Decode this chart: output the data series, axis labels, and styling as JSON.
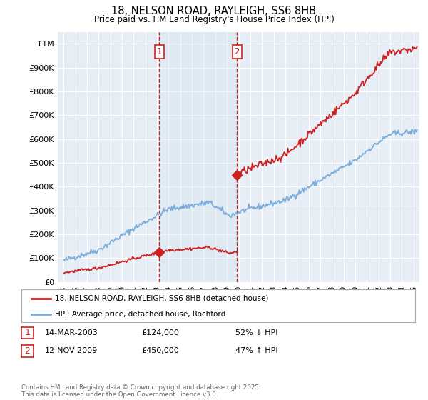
{
  "title": "18, NELSON ROAD, RAYLEIGH, SS6 8HB",
  "subtitle": "Price paid vs. HM Land Registry's House Price Index (HPI)",
  "xlim_start": 1994.5,
  "xlim_end": 2025.5,
  "ylim": [
    0,
    1050000
  ],
  "yticks": [
    0,
    100000,
    200000,
    300000,
    400000,
    500000,
    600000,
    700000,
    800000,
    900000,
    1000000
  ],
  "ytick_labels": [
    "£0",
    "£100K",
    "£200K",
    "£300K",
    "£400K",
    "£500K",
    "£600K",
    "£700K",
    "£800K",
    "£900K",
    "£1M"
  ],
  "background_color": "#ffffff",
  "plot_bg_color": "#e8eef5",
  "grid_color": "#ffffff",
  "sale1_x": 2003.2,
  "sale1_y": 124000,
  "sale2_x": 2009.87,
  "sale2_y": 450000,
  "hpi_color": "#7aaddb",
  "sale_color": "#cc2222",
  "legend_line1": "18, NELSON ROAD, RAYLEIGH, SS6 8HB (detached house)",
  "legend_line2": "HPI: Average price, detached house, Rochford",
  "annotation1_date": "14-MAR-2003",
  "annotation1_price": "£124,000",
  "annotation1_hpi": "52% ↓ HPI",
  "annotation2_date": "12-NOV-2009",
  "annotation2_price": "£450,000",
  "annotation2_hpi": "47% ↑ HPI",
  "footer": "Contains HM Land Registry data © Crown copyright and database right 2025.\nThis data is licensed under the Open Government Licence v3.0.",
  "xticks": [
    1995,
    1996,
    1997,
    1998,
    1999,
    2000,
    2001,
    2002,
    2003,
    2004,
    2005,
    2006,
    2007,
    2008,
    2009,
    2010,
    2011,
    2012,
    2013,
    2014,
    2015,
    2016,
    2017,
    2018,
    2019,
    2020,
    2021,
    2022,
    2023,
    2024,
    2025
  ]
}
